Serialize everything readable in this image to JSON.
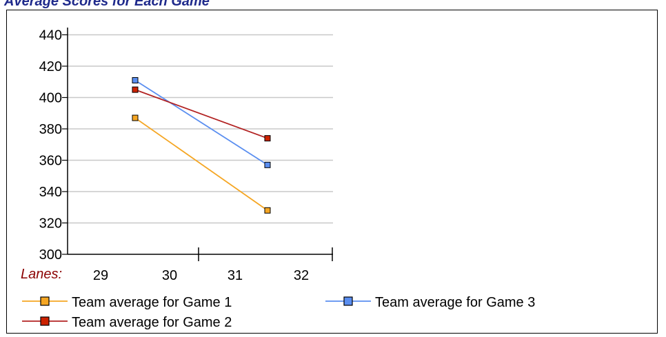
{
  "page": {
    "title": "Average Scores for Each Game"
  },
  "chart_data": {
    "type": "line",
    "title": "Average Scores for Each Game",
    "xlabel": "Lanes:",
    "ylabel": "",
    "ylim": [
      300,
      450
    ],
    "yticks": [
      300,
      320,
      340,
      360,
      380,
      400,
      420,
      440
    ],
    "x_tick_labels": [
      "29",
      "30",
      "31",
      "32"
    ],
    "categories": [
      "29-30",
      "31-32"
    ],
    "grid": true,
    "legend_position": "bottom",
    "series": [
      {
        "name": "Team average for Game 1",
        "color": "#f5a623",
        "marker_fill": "#f5a623",
        "values": [
          387,
          328
        ]
      },
      {
        "name": "Team average for Game 2",
        "color": "#b22222",
        "marker_fill": "#cc2200",
        "values": [
          405,
          374
        ]
      },
      {
        "name": "Team average for Game 3",
        "color": "#5a8ef0",
        "marker_fill": "#5a8ef0",
        "values": [
          411,
          357
        ]
      }
    ]
  }
}
